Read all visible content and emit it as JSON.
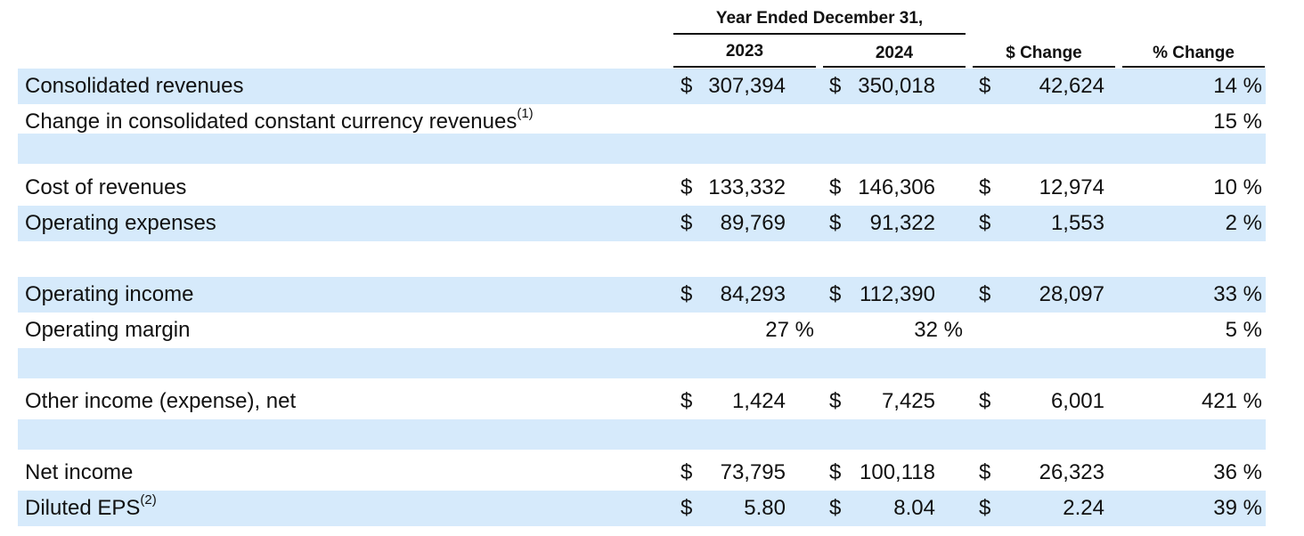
{
  "header": {
    "period": "Year Ended December 31,",
    "col_2023": "2023",
    "col_2024": "2024",
    "col_change": "$ Change",
    "col_pct": "% Change"
  },
  "rows": [
    {
      "label": "Consolidated revenues",
      "sup": "",
      "d1": "$",
      "v2023": "307,394",
      "d2": "$",
      "v2024": "350,018",
      "d3": "$",
      "change": "42,624",
      "pct": "14 %"
    },
    {
      "label": "Change in consolidated constant currency revenues",
      "sup": "(1)",
      "d1": "",
      "v2023": "",
      "d2": "",
      "v2024": "",
      "d3": "",
      "change": "",
      "pct": "15 %"
    },
    {
      "label": "",
      "sup": "",
      "d1": "",
      "v2023": "",
      "d2": "",
      "v2024": "",
      "d3": "",
      "change": "",
      "pct": ""
    },
    {
      "label": "Cost of revenues",
      "sup": "",
      "d1": "$",
      "v2023": "133,332",
      "d2": "$",
      "v2024": "146,306",
      "d3": "$",
      "change": "12,974",
      "pct": "10 %"
    },
    {
      "label": "Operating expenses",
      "sup": "",
      "d1": "$",
      "v2023": "89,769",
      "d2": "$",
      "v2024": "91,322",
      "d3": "$",
      "change": "1,553",
      "pct": "2 %"
    },
    {
      "label": "",
      "sup": "",
      "d1": "",
      "v2023": "",
      "d2": "",
      "v2024": "",
      "d3": "",
      "change": "",
      "pct": ""
    },
    {
      "label": "Operating income",
      "sup": "",
      "d1": "$",
      "v2023": "84,293",
      "d2": "$",
      "v2024": "112,390",
      "d3": "$",
      "change": "28,097",
      "pct": "33 %"
    },
    {
      "label": "Operating margin",
      "sup": "",
      "d1": "",
      "v2023": "27 %",
      "d2": "",
      "v2024": "32 %",
      "d3": "",
      "change": "",
      "pct": "5 %"
    },
    {
      "label": "",
      "sup": "",
      "d1": "",
      "v2023": "",
      "d2": "",
      "v2024": "",
      "d3": "",
      "change": "",
      "pct": ""
    },
    {
      "label": "Other income (expense), net",
      "sup": "",
      "d1": "$",
      "v2023": "1,424",
      "d2": "$",
      "v2024": "7,425",
      "d3": "$",
      "change": "6,001",
      "pct": "421 %"
    },
    {
      "label": "",
      "sup": "",
      "d1": "",
      "v2023": "",
      "d2": "",
      "v2024": "",
      "d3": "",
      "change": "",
      "pct": ""
    },
    {
      "label": "Net income",
      "sup": "",
      "d1": "$",
      "v2023": "73,795",
      "d2": "$",
      "v2024": "100,118",
      "d3": "$",
      "change": "26,323",
      "pct": "36 %"
    },
    {
      "label": "Diluted EPS",
      "sup": "(2)",
      "d1": "$",
      "v2023": "5.80",
      "d2": "$",
      "v2024": "8.04",
      "d3": "$",
      "change": "2.24",
      "pct": "39 %"
    }
  ]
}
